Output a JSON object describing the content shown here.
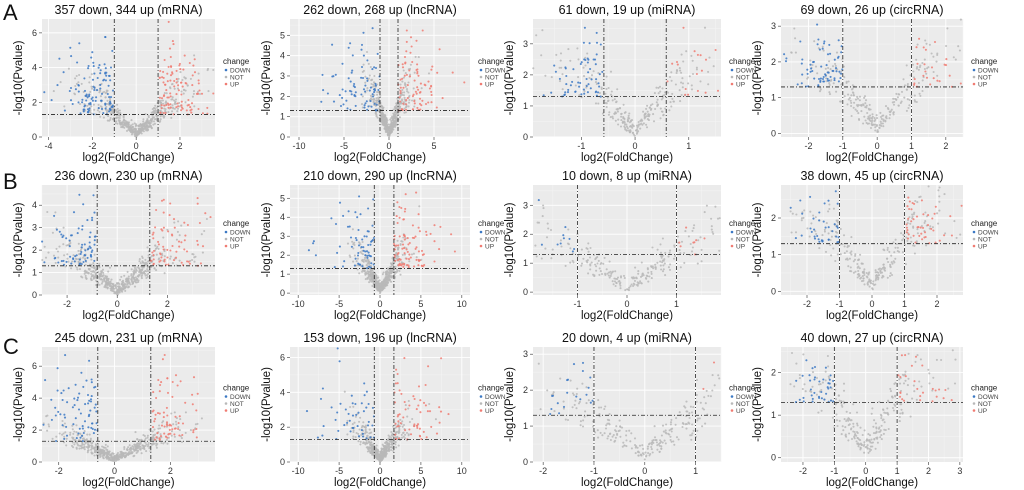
{
  "figure": {
    "row_labels": [
      "A",
      "B",
      "C"
    ],
    "colors": {
      "DOWN": "#3b78c4",
      "NOT": "#b8b8b8",
      "UP": "#f07b72",
      "panel": "#ebebeb"
    }
  },
  "chart_data": [
    {
      "id": "A-mRNA",
      "type": "scatter",
      "row": 0,
      "col": 0,
      "title": "357 down, 344 up (mRNA)",
      "xlabel": "log2(FoldChange)",
      "ylabel": "-log10(Pvalue)",
      "xlim": [
        -4.3,
        3.6
      ],
      "ylim": [
        0,
        6.8
      ],
      "xticks": [
        -4,
        -2,
        0,
        2
      ],
      "yticks": [
        0,
        2,
        4,
        6
      ],
      "vlines": [
        -1,
        1
      ],
      "hline": 1.3,
      "n_down": 357,
      "n_up": 344,
      "legend": {
        "title": "change",
        "items": [
          "DOWN",
          "NOT",
          "UP"
        ]
      }
    },
    {
      "id": "A-lncRNA",
      "type": "scatter",
      "row": 0,
      "col": 1,
      "title": "262 down, 268 up (lncRNA)",
      "xlabel": "log2(FoldChange)",
      "ylabel": "-log10(Pvalue)",
      "xlim": [
        -11,
        9
      ],
      "ylim": [
        0,
        5.8
      ],
      "xticks": [
        -10,
        -5,
        0,
        5
      ],
      "yticks": [
        0,
        1,
        2,
        3,
        4,
        5
      ],
      "vlines": [
        -1,
        1
      ],
      "hline": 1.3,
      "n_down": 262,
      "n_up": 268,
      "legend": {
        "title": "change",
        "items": [
          "DOWN",
          "NOT",
          "UP"
        ]
      }
    },
    {
      "id": "A-miRNA",
      "type": "scatter",
      "row": 0,
      "col": 2,
      "title": "61 down, 19 up (miRNA)",
      "xlabel": "log2(FoldChange)",
      "ylabel": "-log10(Pvalue)",
      "xlim": [
        -1.9,
        1.6
      ],
      "ylim": [
        0,
        3.8
      ],
      "xticks": [
        -1,
        0,
        1
      ],
      "yticks": [
        0,
        1,
        2,
        3
      ],
      "vlines": [
        -0.58,
        0.58
      ],
      "hline": 1.3,
      "n_down": 61,
      "n_up": 19,
      "legend": {
        "title": "change",
        "items": [
          "DOWN",
          "NOT",
          "UP"
        ]
      }
    },
    {
      "id": "A-circRNA",
      "type": "scatter",
      "row": 0,
      "col": 3,
      "title": "69 down, 26 up (circRNA)",
      "xlabel": "log2(FoldChange)",
      "ylabel": "-log10(Pvalue)",
      "xlim": [
        -2.8,
        2.5
      ],
      "ylim": [
        -0.1,
        3.2
      ],
      "xticks": [
        -2,
        -1,
        0,
        1,
        2
      ],
      "yticks": [
        0,
        1,
        2,
        3
      ],
      "vlines": [
        -1,
        1
      ],
      "hline": 1.3,
      "n_down": 69,
      "n_up": 26,
      "legend": {
        "title": "change",
        "items": [
          "DOWN",
          "NOT",
          "UP"
        ]
      }
    },
    {
      "id": "B-mRNA",
      "type": "scatter",
      "row": 1,
      "col": 0,
      "title": "236 down, 230 up (mRNA)",
      "xlabel": "log2(FoldChange)",
      "ylabel": "-log10(Pvalue)",
      "xlim": [
        -3,
        3.9
      ],
      "ylim": [
        0,
        4.9
      ],
      "xticks": [
        -2,
        0,
        2
      ],
      "yticks": [
        0,
        1,
        2,
        3,
        4
      ],
      "vlines": [
        -0.8,
        1.3
      ],
      "hline": 1.3,
      "n_down": 236,
      "n_up": 230,
      "legend": {
        "title": "change",
        "items": [
          "DOWN",
          "NOT",
          "UP"
        ]
      }
    },
    {
      "id": "B-lncRNA",
      "type": "scatter",
      "row": 1,
      "col": 1,
      "title": "210 down, 290 up (lncRNA)",
      "xlabel": "log2(FoldChange)",
      "ylabel": "-log10(Pvalue)",
      "xlim": [
        -11,
        11
      ],
      "ylim": [
        -0.1,
        5.7
      ],
      "xticks": [
        -10,
        -5,
        0,
        5,
        10
      ],
      "yticks": [
        0,
        1,
        2,
        3,
        4,
        5
      ],
      "vlines": [
        -0.7,
        1.7
      ],
      "hline": 1.3,
      "n_down": 210,
      "n_up": 290,
      "legend": {
        "title": "change",
        "items": [
          "DOWN",
          "NOT",
          "UP"
        ]
      }
    },
    {
      "id": "B-miRNA",
      "type": "scatter",
      "row": 1,
      "col": 2,
      "title": "10 down, 8 up (miRNA)",
      "xlabel": "log2(FoldChange)",
      "ylabel": "-log10(Pvalue)",
      "xlim": [
        -1.9,
        1.9
      ],
      "ylim": [
        -0.1,
        3.7
      ],
      "xticks": [
        -1,
        0,
        1
      ],
      "yticks": [
        0,
        1,
        2,
        3
      ],
      "vlines": [
        -1,
        1
      ],
      "hline": 1.3,
      "n_down": 10,
      "n_up": 8,
      "legend": {
        "title": "change",
        "items": [
          "DOWN",
          "NOT",
          "UP"
        ]
      }
    },
    {
      "id": "B-circRNA",
      "type": "scatter",
      "row": 1,
      "col": 3,
      "title": "38 down, 45 up (circRNA)",
      "xlabel": "log2(FoldChange)",
      "ylabel": "-log10(Pvalue)",
      "xlim": [
        -2.8,
        2.8
      ],
      "ylim": [
        -0.1,
        2.9
      ],
      "xticks": [
        -2,
        -1,
        0,
        1,
        2
      ],
      "yticks": [
        0,
        1,
        2
      ],
      "vlines": [
        -1,
        1
      ],
      "hline": 1.3,
      "n_down": 38,
      "n_up": 45,
      "legend": {
        "title": "change",
        "items": [
          "DOWN",
          "NOT",
          "UP"
        ]
      }
    },
    {
      "id": "C-mRNA",
      "type": "scatter",
      "row": 2,
      "col": 0,
      "title": "245 down, 231 up (mRNA)",
      "xlabel": "log2(FoldChange)",
      "ylabel": "-log10(Pvalue)",
      "xlim": [
        -2.6,
        3.6
      ],
      "ylim": [
        0,
        7.2
      ],
      "xticks": [
        -2,
        0,
        2
      ],
      "yticks": [
        0,
        2,
        4,
        6
      ],
      "vlines": [
        -0.6,
        1.3
      ],
      "hline": 1.3,
      "n_down": 245,
      "n_up": 231,
      "legend": {
        "title": "change",
        "items": [
          "DOWN",
          "NOT",
          "UP"
        ]
      }
    },
    {
      "id": "C-lncRNA",
      "type": "scatter",
      "row": 2,
      "col": 1,
      "title": "153 down, 196 up (lncRNA)",
      "xlabel": "log2(FoldChange)",
      "ylabel": "-log10(Pvalue)",
      "xlim": [
        -11,
        11
      ],
      "ylim": [
        0,
        6.6
      ],
      "xticks": [
        -10,
        -5,
        0,
        5,
        10
      ],
      "yticks": [
        0,
        2,
        4,
        6
      ],
      "vlines": [
        -0.7,
        1.7
      ],
      "hline": 1.3,
      "n_down": 153,
      "n_up": 196,
      "legend": {
        "title": "change",
        "items": [
          "DOWN",
          "NOT",
          "UP"
        ]
      }
    },
    {
      "id": "C-miRNA",
      "type": "scatter",
      "row": 2,
      "col": 2,
      "title": "20 down, 4 up (miRNA)",
      "xlabel": "log2(FoldChange)",
      "ylabel": "-log10(Pvalue)",
      "xlim": [
        -2.2,
        1.5
      ],
      "ylim": [
        0,
        3.2
      ],
      "xticks": [
        -2,
        -1,
        0,
        1
      ],
      "yticks": [
        0,
        1,
        2,
        3
      ],
      "vlines": [
        -1,
        1
      ],
      "hline": 1.3,
      "n_down": 20,
      "n_up": 4,
      "legend": {
        "title": "change",
        "items": [
          "DOWN",
          "NOT",
          "UP"
        ]
      }
    },
    {
      "id": "C-circRNA",
      "type": "scatter",
      "row": 2,
      "col": 3,
      "title": "40 down, 27 up (circRNA)",
      "xlabel": "log2(FoldChange)",
      "ylabel": "-log10(Pvalue)",
      "xlim": [
        -2.7,
        3.1
      ],
      "ylim": [
        -0.1,
        2.6
      ],
      "xticks": [
        -2,
        -1,
        0,
        1,
        2,
        3
      ],
      "yticks": [
        0,
        1,
        2
      ],
      "vlines": [
        -1,
        1
      ],
      "hline": 1.3,
      "n_down": 40,
      "n_up": 27,
      "legend": {
        "title": "change",
        "items": [
          "DOWN",
          "NOT",
          "UP"
        ]
      }
    }
  ]
}
